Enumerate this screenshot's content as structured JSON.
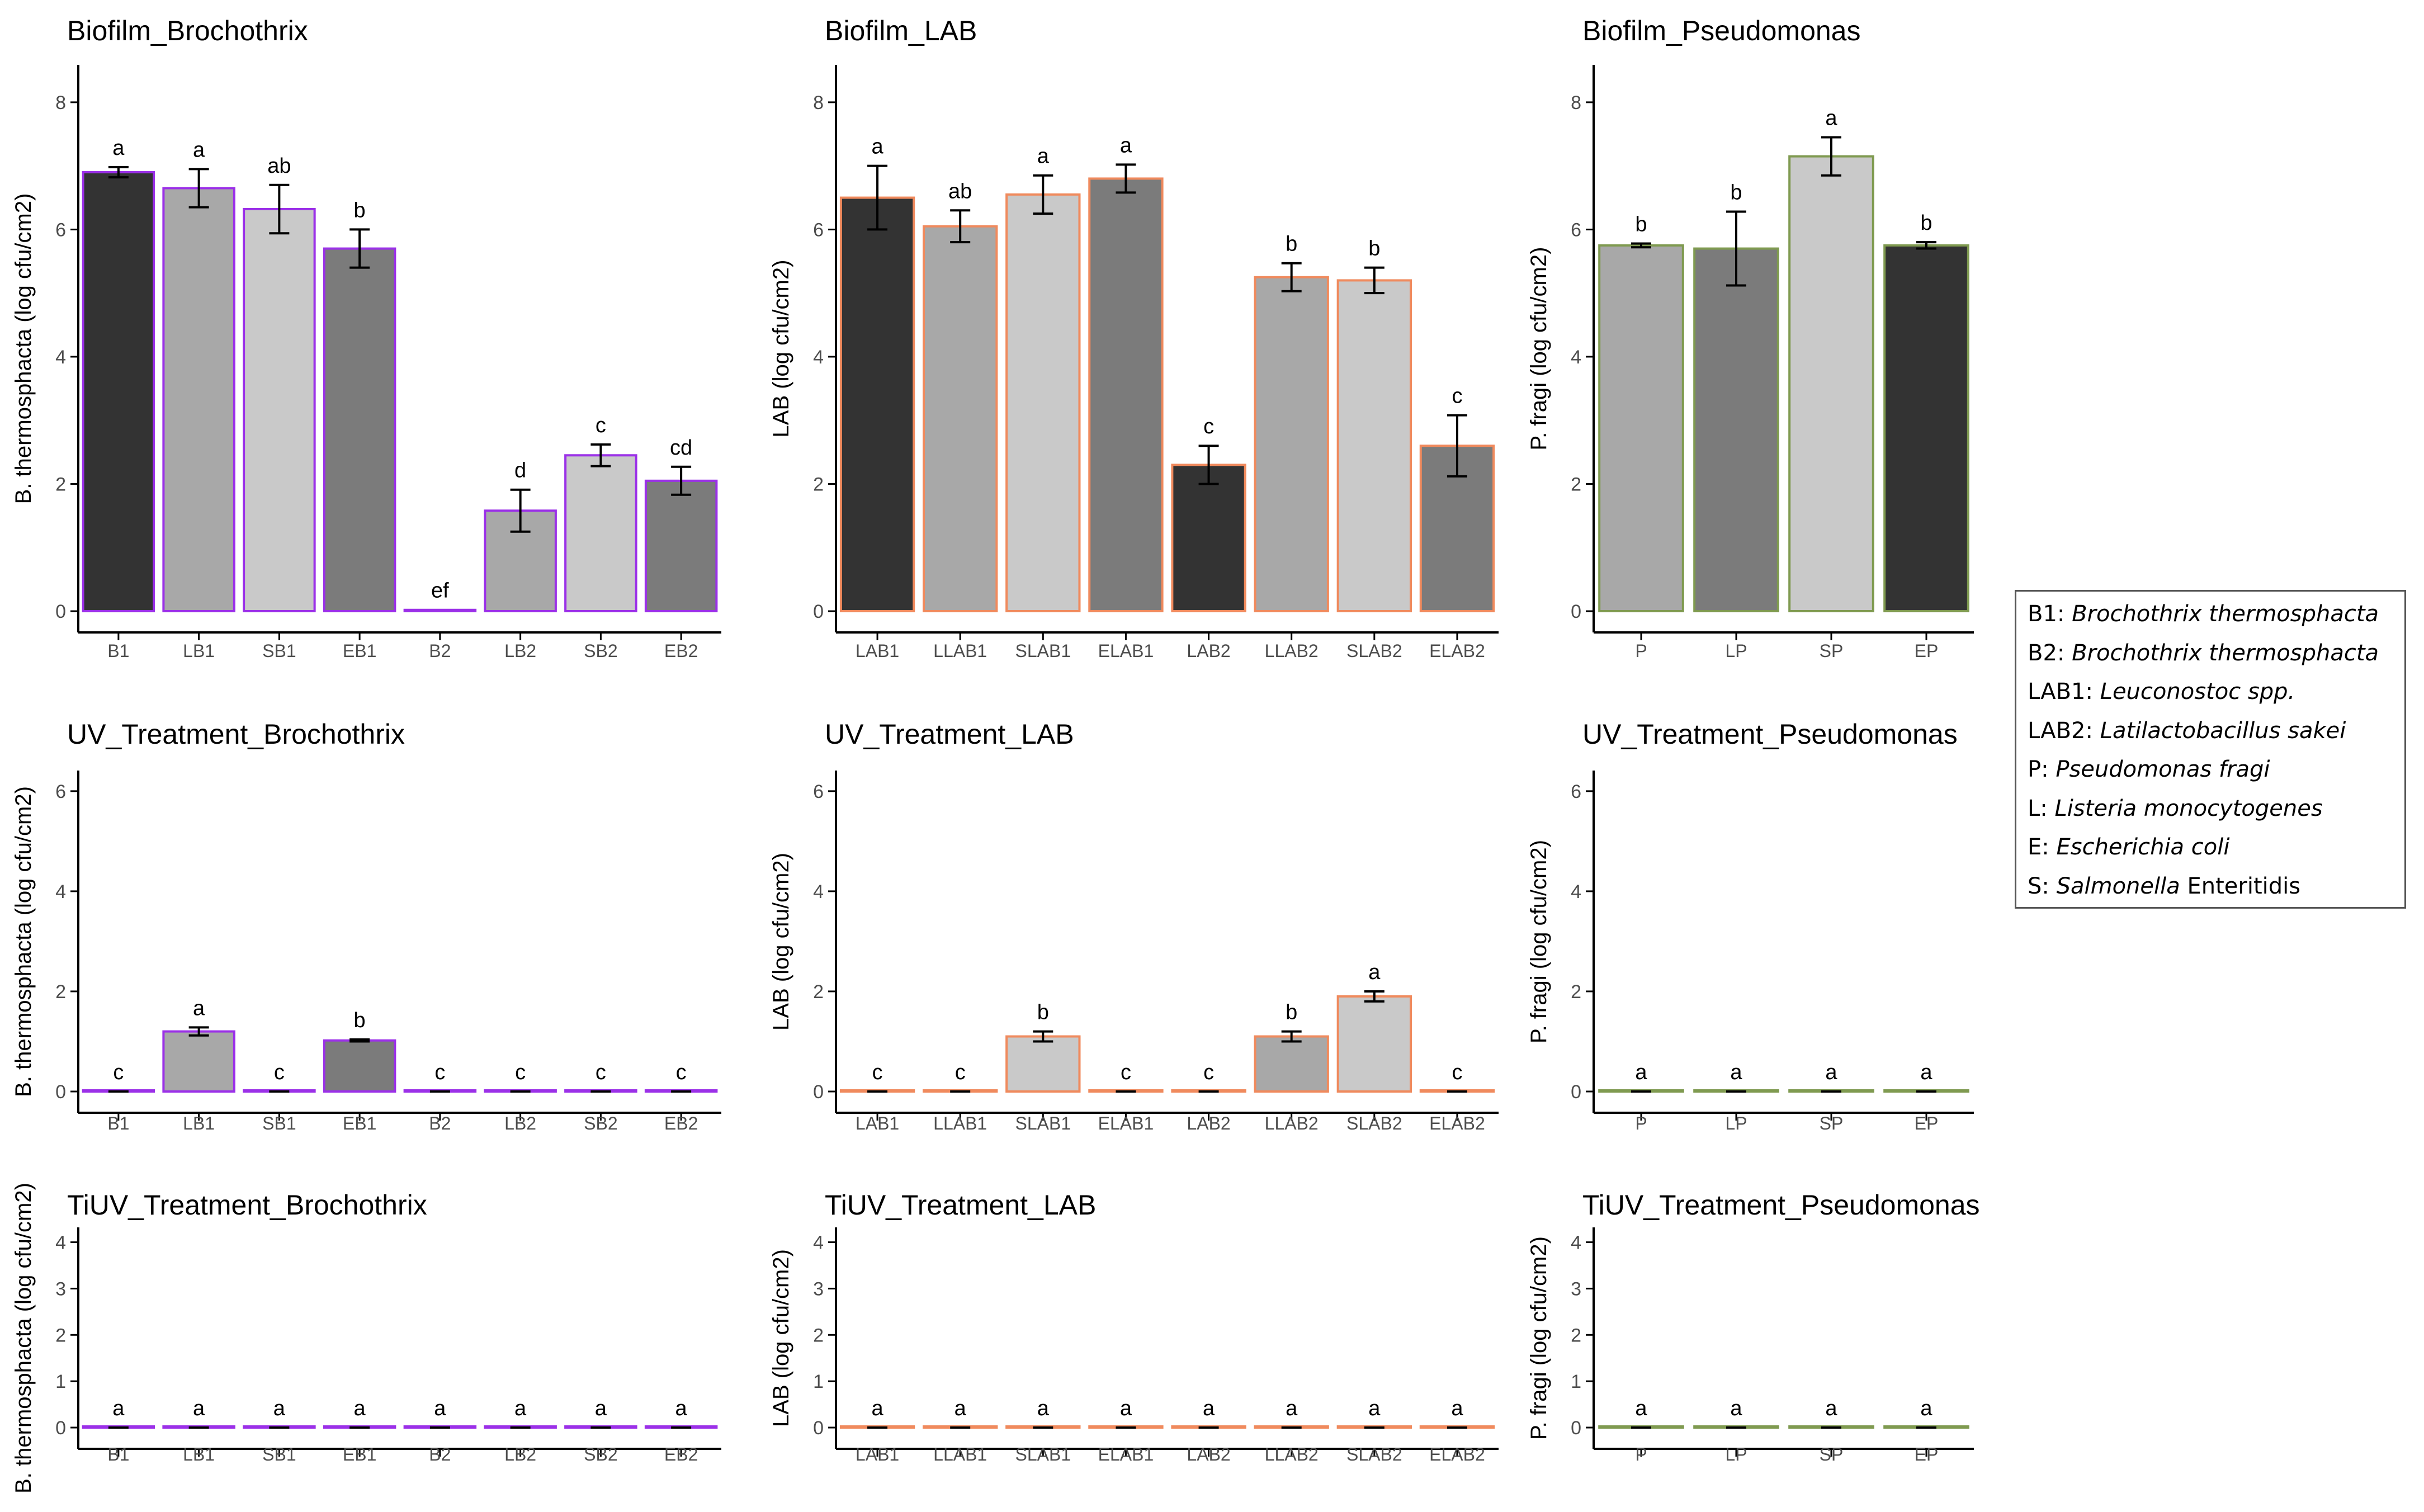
{
  "colors": {
    "dark": "#333333",
    "medium": "#7b7b7b",
    "light": "#a8a8a8",
    "lighter": "#c9c9c9",
    "brochothrix_border": "#9b30e8",
    "lab_border": "#f08a5d",
    "pseudomonas_border": "#7f9a50",
    "axis": "#000000"
  },
  "chart_data": [
    {
      "type": "bar",
      "title": "Biofilm_Brochothrix",
      "ylabel": "B. thermosphacta (log cfu/cm2)",
      "xlabel": "",
      "ylim": [
        0,
        8.5
      ],
      "yticks": [
        0,
        2,
        4,
        6,
        8
      ],
      "border_color": "brochothrix_border",
      "categories": [
        "B1",
        "LB1",
        "SB1",
        "EB1",
        "B2",
        "LB2",
        "SB2",
        "EB2"
      ],
      "values": [
        6.9,
        6.65,
        6.32,
        5.7,
        0.02,
        1.58,
        2.45,
        2.05
      ],
      "errors": [
        0.08,
        0.3,
        0.38,
        0.3,
        0.0,
        0.33,
        0.17,
        0.22
      ],
      "fills": [
        "dark",
        "light",
        "lighter",
        "medium",
        "lighter",
        "light",
        "lighter",
        "medium"
      ],
      "letters": [
        "a",
        "a",
        "ab",
        "b",
        "ef",
        "d",
        "c",
        "cd"
      ]
    },
    {
      "type": "bar",
      "title": "Biofilm_LAB",
      "ylabel": "LAB (log cfu/cm2)",
      "xlabel": "",
      "ylim": [
        0,
        8.5
      ],
      "yticks": [
        0,
        2,
        4,
        6,
        8
      ],
      "border_color": "lab_border",
      "categories": [
        "LAB1",
        "LLAB1",
        "SLAB1",
        "ELAB1",
        "LAB2",
        "LLAB2",
        "SLAB2",
        "ELAB2"
      ],
      "values": [
        6.5,
        6.05,
        6.55,
        6.8,
        2.3,
        5.25,
        5.2,
        2.6
      ],
      "errors": [
        0.5,
        0.25,
        0.3,
        0.22,
        0.3,
        0.22,
        0.2,
        0.48
      ],
      "fills": [
        "dark",
        "light",
        "lighter",
        "medium",
        "dark",
        "light",
        "lighter",
        "medium"
      ],
      "letters": [
        "a",
        "ab",
        "a",
        "a",
        "c",
        "b",
        "b",
        "c"
      ]
    },
    {
      "type": "bar",
      "title": "Biofilm_Pseudomonas",
      "ylabel": "P. fragi (log cfu/cm2)",
      "xlabel": "",
      "ylim": [
        0,
        8.5
      ],
      "yticks": [
        0,
        2,
        4,
        6,
        8
      ],
      "border_color": "pseudomonas_border",
      "categories": [
        "P",
        "LP",
        "SP",
        "EP"
      ],
      "values": [
        5.75,
        5.7,
        7.15,
        5.75
      ],
      "errors": [
        0.03,
        0.58,
        0.3,
        0.05
      ],
      "fills": [
        "light",
        "medium",
        "lighter",
        "dark"
      ],
      "letters": [
        "b",
        "b",
        "a",
        "b"
      ]
    },
    {
      "type": "bar",
      "title": "UV_Treatment_Brochothrix",
      "ylabel": "B. thermosphacta (log cfu/cm2)",
      "xlabel": "",
      "ylim": [
        0,
        6.3
      ],
      "yticks": [
        0,
        2,
        4,
        6
      ],
      "border_color": "brochothrix_border",
      "categories": [
        "B1",
        "LB1",
        "SB1",
        "EB1",
        "B2",
        "LB2",
        "SB2",
        "EB2"
      ],
      "values": [
        0,
        1.2,
        0,
        1.02,
        0,
        0,
        0,
        0
      ],
      "errors": [
        0,
        0.08,
        0,
        0.02,
        0,
        0,
        0,
        0
      ],
      "fills": [
        "dark",
        "light",
        "lighter",
        "medium",
        "dark",
        "light",
        "lighter",
        "medium"
      ],
      "letters": [
        "c",
        "a",
        "c",
        "b",
        "c",
        "c",
        "c",
        "c"
      ]
    },
    {
      "type": "bar",
      "title": "UV_Treatment_LAB",
      "ylabel": "LAB (log cfu/cm2)",
      "xlabel": "",
      "ylim": [
        0,
        6.3
      ],
      "yticks": [
        0,
        2,
        4,
        6
      ],
      "border_color": "lab_border",
      "categories": [
        "LAB1",
        "LLAB1",
        "SLAB1",
        "ELAB1",
        "LAB2",
        "LLAB2",
        "SLAB2",
        "ELAB2"
      ],
      "values": [
        0,
        0,
        1.1,
        0,
        0,
        1.1,
        1.9,
        0
      ],
      "errors": [
        0,
        0,
        0.1,
        0,
        0,
        0.1,
        0.1,
        0
      ],
      "fills": [
        "dark",
        "light",
        "lighter",
        "medium",
        "dark",
        "light",
        "lighter",
        "medium"
      ],
      "letters": [
        "c",
        "c",
        "b",
        "c",
        "c",
        "b",
        "a",
        "c"
      ]
    },
    {
      "type": "bar",
      "title": "UV_Treatment_Pseudomonas",
      "ylabel": "P. fragi (log cfu/cm2)",
      "xlabel": "",
      "ylim": [
        0,
        6.3
      ],
      "yticks": [
        0,
        2,
        4,
        6
      ],
      "border_color": "pseudomonas_border",
      "categories": [
        "P",
        "LP",
        "SP",
        "EP"
      ],
      "values": [
        0,
        0,
        0,
        0
      ],
      "errors": [
        0,
        0,
        0,
        0
      ],
      "fills": [
        "light",
        "medium",
        "lighter",
        "dark"
      ],
      "letters": [
        "a",
        "a",
        "a",
        "a"
      ]
    },
    {
      "type": "bar",
      "title": "TiUV_Treatment_Brochothrix",
      "ylabel": "B. thermosphacta (log cfu/cm2)",
      "xlabel": "",
      "ylim": [
        0,
        4.2
      ],
      "yticks": [
        0,
        1,
        2,
        3,
        4
      ],
      "border_color": "brochothrix_border",
      "categories": [
        "B1",
        "LB1",
        "SB1",
        "EB1",
        "B2",
        "LB2",
        "SB2",
        "EB2"
      ],
      "values": [
        0,
        0,
        0,
        0,
        0,
        0,
        0,
        0
      ],
      "errors": [
        0,
        0,
        0,
        0,
        0,
        0,
        0,
        0
      ],
      "fills": [
        "dark",
        "light",
        "lighter",
        "medium",
        "dark",
        "light",
        "lighter",
        "medium"
      ],
      "letters": [
        "a",
        "a",
        "a",
        "a",
        "a",
        "a",
        "a",
        "a"
      ]
    },
    {
      "type": "bar",
      "title": "TiUV_Treatment_LAB",
      "ylabel": "LAB (log cfu/cm2)",
      "xlabel": "",
      "ylim": [
        0,
        4.2
      ],
      "yticks": [
        0,
        1,
        2,
        3,
        4
      ],
      "border_color": "lab_border",
      "categories": [
        "LAB1",
        "LLAB1",
        "SLAB1",
        "ELAB1",
        "LAB2",
        "LLAB2",
        "SLAB2",
        "ELAB2"
      ],
      "values": [
        0,
        0,
        0,
        0,
        0,
        0,
        0,
        0
      ],
      "errors": [
        0,
        0,
        0,
        0,
        0,
        0,
        0,
        0
      ],
      "fills": [
        "dark",
        "light",
        "lighter",
        "medium",
        "dark",
        "light",
        "lighter",
        "medium"
      ],
      "letters": [
        "a",
        "a",
        "a",
        "a",
        "a",
        "a",
        "a",
        "a"
      ]
    },
    {
      "type": "bar",
      "title": "TiUV_Treatment_Pseudomonas",
      "ylabel": "P. fragi (log cfu/cm2)",
      "xlabel": "",
      "ylim": [
        0,
        4.2
      ],
      "yticks": [
        0,
        1,
        2,
        3,
        4
      ],
      "border_color": "pseudomonas_border",
      "categories": [
        "P",
        "LP",
        "SP",
        "EP"
      ],
      "values": [
        0,
        0,
        0,
        0
      ],
      "errors": [
        0,
        0,
        0,
        0
      ],
      "fills": [
        "light",
        "medium",
        "lighter",
        "dark"
      ],
      "letters": [
        "a",
        "a",
        "a",
        "a"
      ]
    }
  ],
  "legend": {
    "items": [
      {
        "code": "B1:",
        "name": "Brochothrix thermosphacta"
      },
      {
        "code": "B2:",
        "name": "Brochothrix thermosphacta"
      },
      {
        "code": "LAB1:",
        "name": "Leuconostoc spp."
      },
      {
        "code": "LAB2:",
        "name": "Latilactobacillus sakei"
      },
      {
        "code": "P:",
        "name": "Pseudomonas fragi"
      },
      {
        "code": "L:",
        "name": "Listeria monocytogenes"
      },
      {
        "code": "E:",
        "name": "Escherichia coli"
      },
      {
        "code": "S:",
        "name_italic": "Salmonella",
        "name_plain": "Enteritidis"
      }
    ]
  }
}
